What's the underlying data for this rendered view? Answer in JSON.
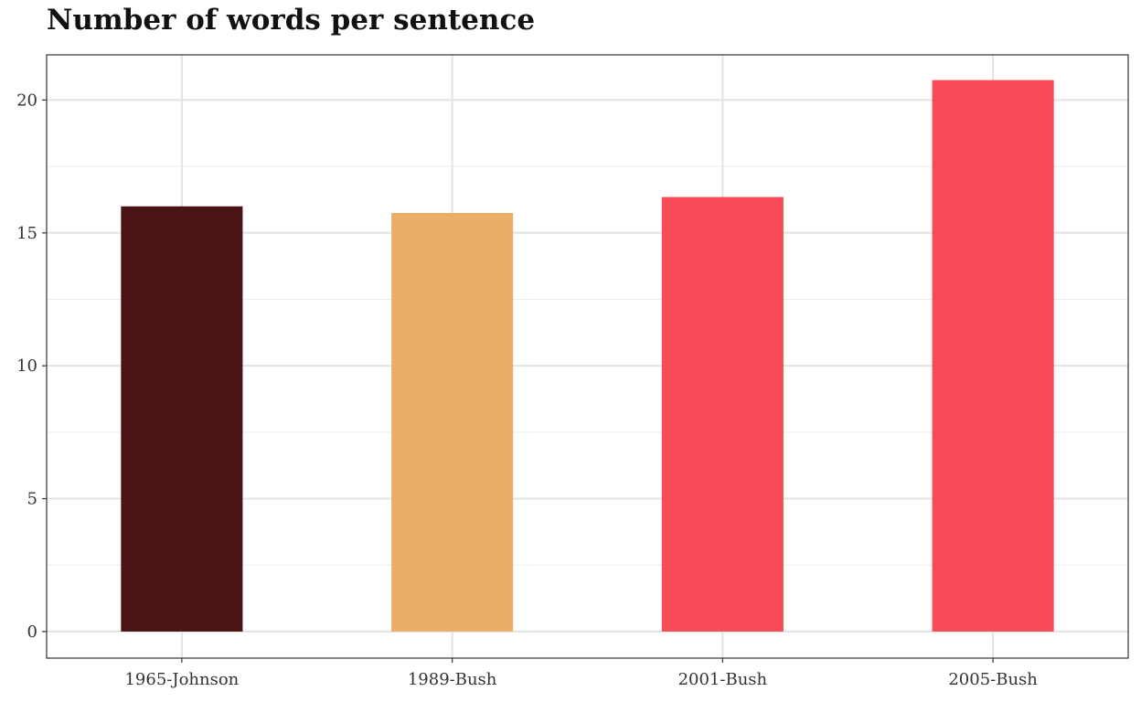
{
  "chart_data": {
    "type": "bar",
    "title": "Number of words per sentence",
    "xlabel": "",
    "ylabel": "",
    "categories": [
      "1965-Johnson",
      "1989-Bush",
      "2001-Bush",
      "2005-Bush"
    ],
    "values": [
      16.0,
      15.75,
      16.35,
      20.75
    ],
    "colors": [
      "#4a1314",
      "#ebae69",
      "#f94b57",
      "#f94b57"
    ],
    "ylim": [
      -1,
      21.7
    ],
    "yticks": [
      0,
      5,
      10,
      15,
      20
    ],
    "grid": true,
    "legend": "none"
  }
}
